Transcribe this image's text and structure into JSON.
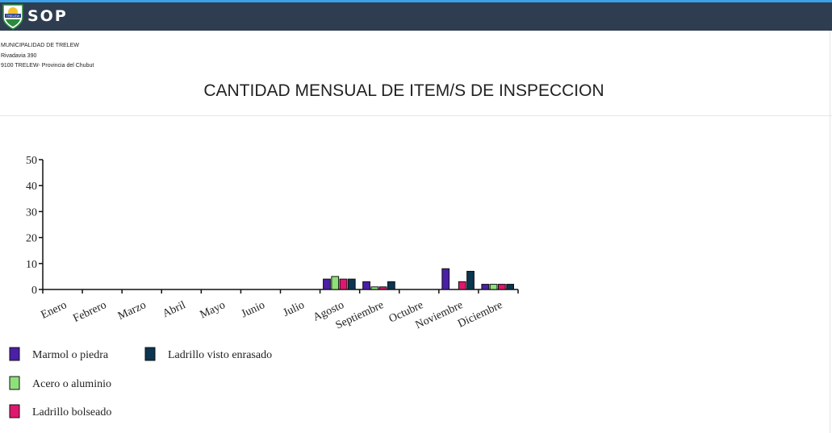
{
  "header": {
    "app_title": "SOP",
    "logo_text": "TRELEW"
  },
  "address": {
    "line1": "MUNICIPALIDAD DE TRELEW",
    "line2": "Rivadavia 390",
    "line3": "9100 TRELEW- Provincia del Chubut"
  },
  "report": {
    "title": "CANTIDAD MENSUAL DE ITEM/S DE INSPECCION"
  },
  "colors": {
    "topbar": "#2e3e50",
    "accent": "#3aa0e8"
  },
  "chart_data": {
    "type": "bar",
    "categories": [
      "Enero",
      "Febrero",
      "Marzo",
      "Abril",
      "Mayo",
      "Junio",
      "Julio",
      "Agosto",
      "Septiembre",
      "Octubre",
      "Noviembre",
      "Diciembre"
    ],
    "ylim": [
      0,
      50
    ],
    "yticks": [
      0,
      10,
      20,
      30,
      40,
      50
    ],
    "legend_position": "bottom-left",
    "series": [
      {
        "name": "Marmol o piedra",
        "color": "#4b1fa6",
        "values": [
          0,
          0,
          0,
          0,
          0,
          0,
          0,
          4,
          3,
          0,
          8,
          2
        ]
      },
      {
        "name": "Acero o aluminio",
        "color": "#8ee07a",
        "values": [
          0,
          0,
          0,
          0,
          0,
          0,
          0,
          5,
          1,
          0,
          0,
          2
        ]
      },
      {
        "name": "Ladrillo bolseado",
        "color": "#e0176e",
        "values": [
          0,
          0,
          0,
          0,
          0,
          0,
          0,
          4,
          1,
          0,
          3,
          2
        ]
      },
      {
        "name": "Ladrillo visto enrasado",
        "color": "#0b3550",
        "values": [
          0,
          0,
          0,
          0,
          0,
          0,
          0,
          4,
          3,
          0,
          7,
          2
        ]
      }
    ]
  }
}
